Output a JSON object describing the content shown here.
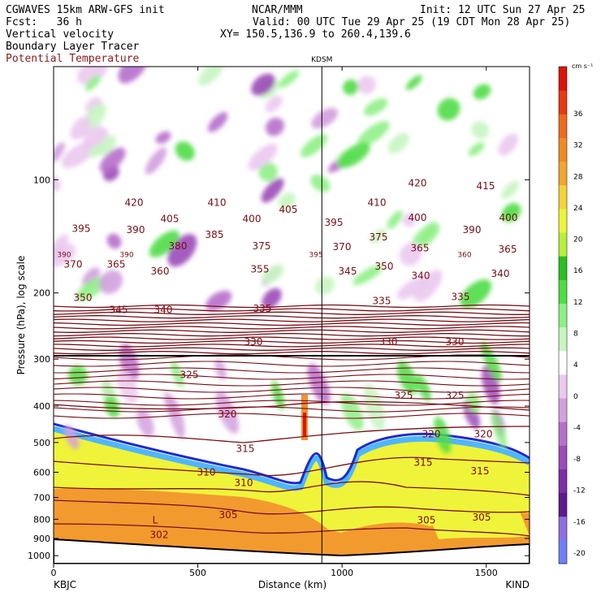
{
  "header": {
    "line1_left": "CGWAVES 15km ARW-GFS init",
    "line1_mid": "NCAR/MMM",
    "line1_right": "Init: 12 UTC Sun 27 Apr 25",
    "line2_left": "Fcst:   36 h",
    "line2_right": "Valid: 00 UTC Tue 29 Apr 25 (19 CDT Mon 28 Apr 25)",
    "line3_left": "Vertical velocity",
    "line3_right": "XY= 150.5,136.9 to 260.4,139.6",
    "line4_left": "Boundary Layer Tracer",
    "line5_left": "Potential Temperature"
  },
  "colors": {
    "theta_contour": "#7a0c14",
    "pbl_tracer_line": "#000000"
  },
  "chart_data": {
    "type": "cross-section",
    "top_label": "KDSM",
    "xlabel": "Distance (km)",
    "ylabel": "Pressure (hPa), log scale",
    "x_ticks": [
      0,
      500,
      1000,
      1500
    ],
    "xlim": [
      0,
      1650
    ],
    "y_ticks": [
      100,
      200,
      300,
      400,
      500,
      600,
      700,
      800,
      900,
      1000
    ],
    "ylim": [
      1050,
      50
    ],
    "y_scale": "log",
    "left_endpoint": "KBJC",
    "right_endpoint": "KIND",
    "kdsm_distance": 930,
    "colorbar": {
      "unit": "cm s⁻¹",
      "ticks": [
        36,
        32,
        28,
        24,
        20,
        16,
        12,
        8,
        4,
        0,
        -4,
        -8,
        -12,
        -16,
        -20
      ],
      "colors": [
        "#6f7ff5",
        "#8e6fe0",
        "#5f1a8c",
        "#7d2ea6",
        "#9b4bb8",
        "#b76fcc",
        "#d3a0de",
        "#ebc9ef",
        "#ffffff",
        "#c8f5c2",
        "#8fef86",
        "#4fdc45",
        "#2bbf22",
        "#b6f03a",
        "#eaf53c",
        "#f5d23a",
        "#f2a531",
        "#ef8a25",
        "#ec6a1d",
        "#e83a12",
        "#d8160a"
      ]
    },
    "theta_labels": [
      {
        "v": "420",
        "x": 165,
        "p": 115
      },
      {
        "v": "410",
        "x": 267,
        "p": 115
      },
      {
        "v": "410",
        "x": 464,
        "p": 115
      },
      {
        "v": "420",
        "x": 514,
        "p": 102
      },
      {
        "v": "415",
        "x": 598,
        "p": 104
      },
      {
        "v": "395",
        "x": 100,
        "p": 135
      },
      {
        "v": "405",
        "x": 209,
        "p": 127
      },
      {
        "v": "400",
        "x": 310,
        "p": 127
      },
      {
        "v": "405",
        "x": 355,
        "p": 120
      },
      {
        "v": "395",
        "x": 411,
        "p": 130
      },
      {
        "v": "400",
        "x": 514,
        "p": 126
      },
      {
        "v": "400",
        "x": 626,
        "p": 126
      },
      {
        "v": "390",
        "x": 167,
        "p": 136
      },
      {
        "v": "385",
        "x": 264,
        "p": 140
      },
      {
        "v": "375",
        "x": 322,
        "p": 150
      },
      {
        "v": "375",
        "x": 466,
        "p": 142
      },
      {
        "v": "390",
        "x": 581,
        "p": 136
      },
      {
        "v": "380",
        "x": 219,
        "p": 150
      },
      {
        "v": "370",
        "x": 421,
        "p": 151
      },
      {
        "v": "365",
        "x": 517,
        "p": 152
      },
      {
        "v": "365",
        "x": 625,
        "p": 153
      },
      {
        "v": "370",
        "x": 90,
        "p": 168
      },
      {
        "v": "365",
        "x": 143,
        "p": 168
      },
      {
        "v": "360",
        "x": 197,
        "p": 175
      },
      {
        "v": "355",
        "x": 320,
        "p": 173
      },
      {
        "v": "345",
        "x": 428,
        "p": 175
      },
      {
        "v": "350",
        "x": 473,
        "p": 170
      },
      {
        "v": "340",
        "x": 518,
        "p": 180
      },
      {
        "v": "340",
        "x": 616,
        "p": 178
      },
      {
        "v": "350",
        "x": 102,
        "p": 206
      },
      {
        "v": "345",
        "x": 146,
        "p": 222
      },
      {
        "v": "340",
        "x": 201,
        "p": 222
      },
      {
        "v": "335",
        "x": 323,
        "p": 220
      },
      {
        "v": "335",
        "x": 470,
        "p": 210
      },
      {
        "v": "335",
        "x": 567,
        "p": 205
      },
      {
        "v": "330",
        "x": 312,
        "p": 270
      },
      {
        "v": "330",
        "x": 478,
        "p": 270
      },
      {
        "v": "330",
        "x": 560,
        "p": 270
      },
      {
        "v": "325",
        "x": 233,
        "p": 330
      },
      {
        "v": "325",
        "x": 497,
        "p": 375
      },
      {
        "v": "325",
        "x": 560,
        "p": 375
      },
      {
        "v": "320",
        "x": 280,
        "p": 420
      },
      {
        "v": "320",
        "x": 531,
        "p": 475
      },
      {
        "v": "320",
        "x": 595,
        "p": 475
      },
      {
        "v": "315",
        "x": 302,
        "p": 520
      },
      {
        "v": "315",
        "x": 521,
        "p": 565
      },
      {
        "v": "315",
        "x": 591,
        "p": 595
      },
      {
        "v": "310",
        "x": 254,
        "p": 600
      },
      {
        "v": "310",
        "x": 300,
        "p": 640
      },
      {
        "v": "305",
        "x": 281,
        "p": 780
      },
      {
        "v": "305",
        "x": 525,
        "p": 805
      },
      {
        "v": "305",
        "x": 593,
        "p": 790
      },
      {
        "v": "302",
        "x": 196,
        "p": 880
      }
    ],
    "annotations": [
      {
        "text": "L",
        "x": 191,
        "p": 805
      }
    ],
    "extra_small_labels": [
      {
        "v": "390",
        "x": 79,
        "p": 158
      },
      {
        "v": "390",
        "x": 156,
        "p": 158
      },
      {
        "v": "395",
        "x": 389,
        "p": 158
      },
      {
        "v": "360",
        "x": 572,
        "p": 158
      }
    ]
  }
}
